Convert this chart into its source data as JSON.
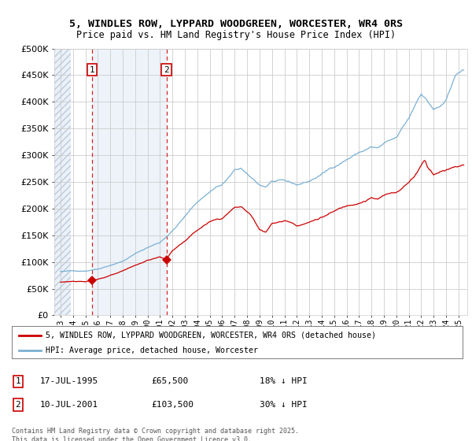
{
  "title_line1": "5, WINDLES ROW, LYPPARD WOODGREEN, WORCESTER, WR4 0RS",
  "title_line2": "Price paid vs. HM Land Registry's House Price Index (HPI)",
  "legend_line1": "5, WINDLES ROW, LYPPARD WOODGREEN, WORCESTER, WR4 0RS (detached house)",
  "legend_line2": "HPI: Average price, detached house, Worcester",
  "annotation1_date": "17-JUL-1995",
  "annotation1_price": "£65,500",
  "annotation1_hpi": "18% ↓ HPI",
  "annotation2_date": "10-JUL-2001",
  "annotation2_price": "£103,500",
  "annotation2_hpi": "30% ↓ HPI",
  "footnote": "Contains HM Land Registry data © Crown copyright and database right 2025.\nThis data is licensed under the Open Government Licence v3.0.",
  "price_color": "#cc0000",
  "hpi_color": "#7ab0d4",
  "ylim": [
    0,
    500000
  ],
  "yticks": [
    0,
    50000,
    100000,
    150000,
    200000,
    250000,
    300000,
    350000,
    400000,
    450000,
    500000
  ],
  "sale1_year": 1995.54,
  "sale1_price": 65500,
  "sale2_year": 2001.52,
  "sale2_price": 103500,
  "grid_color": "#cccccc",
  "bg_color": "#ffffff",
  "hatch_fill": "#e8eef5",
  "blue_shade": "#dce8f4"
}
